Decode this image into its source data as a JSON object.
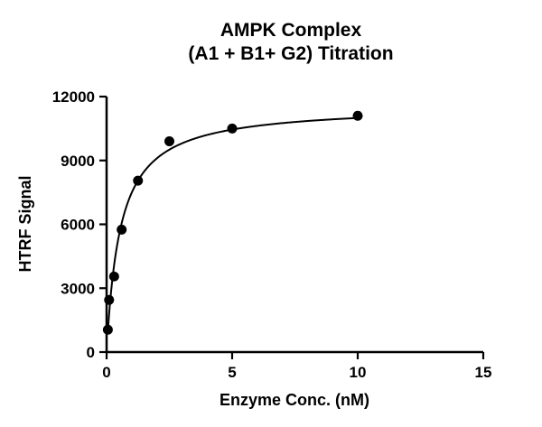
{
  "chart_data": {
    "type": "scatter",
    "title_line1": "AMPK Complex",
    "title_line2": "(A1 + B1+ G2) Titration",
    "xlabel": "Enzyme Conc. (nM)",
    "ylabel": "HTRF Signal",
    "xlim": [
      0,
      15
    ],
    "ylim": [
      0,
      12000
    ],
    "xticks": [
      0,
      5,
      10,
      15
    ],
    "yticks": [
      0,
      3000,
      6000,
      9000,
      12000
    ],
    "grid": false,
    "legend": "none",
    "point_color": "#000000",
    "line_color": "#000000",
    "points": [
      {
        "x": 0.05,
        "y": 1050
      },
      {
        "x": 0.1,
        "y": 2450
      },
      {
        "x": 0.3,
        "y": 3550
      },
      {
        "x": 0.6,
        "y": 5750
      },
      {
        "x": 1.25,
        "y": 8050
      },
      {
        "x": 2.5,
        "y": 9900
      },
      {
        "x": 5,
        "y": 10500
      },
      {
        "x": 10,
        "y": 11100
      }
    ],
    "fit": {
      "model": "one-site-binding",
      "equation": "y = Bmax*x/(Kd+x)",
      "bmax": 11600,
      "kd": 0.55,
      "x_range": [
        0.05,
        10
      ]
    }
  }
}
